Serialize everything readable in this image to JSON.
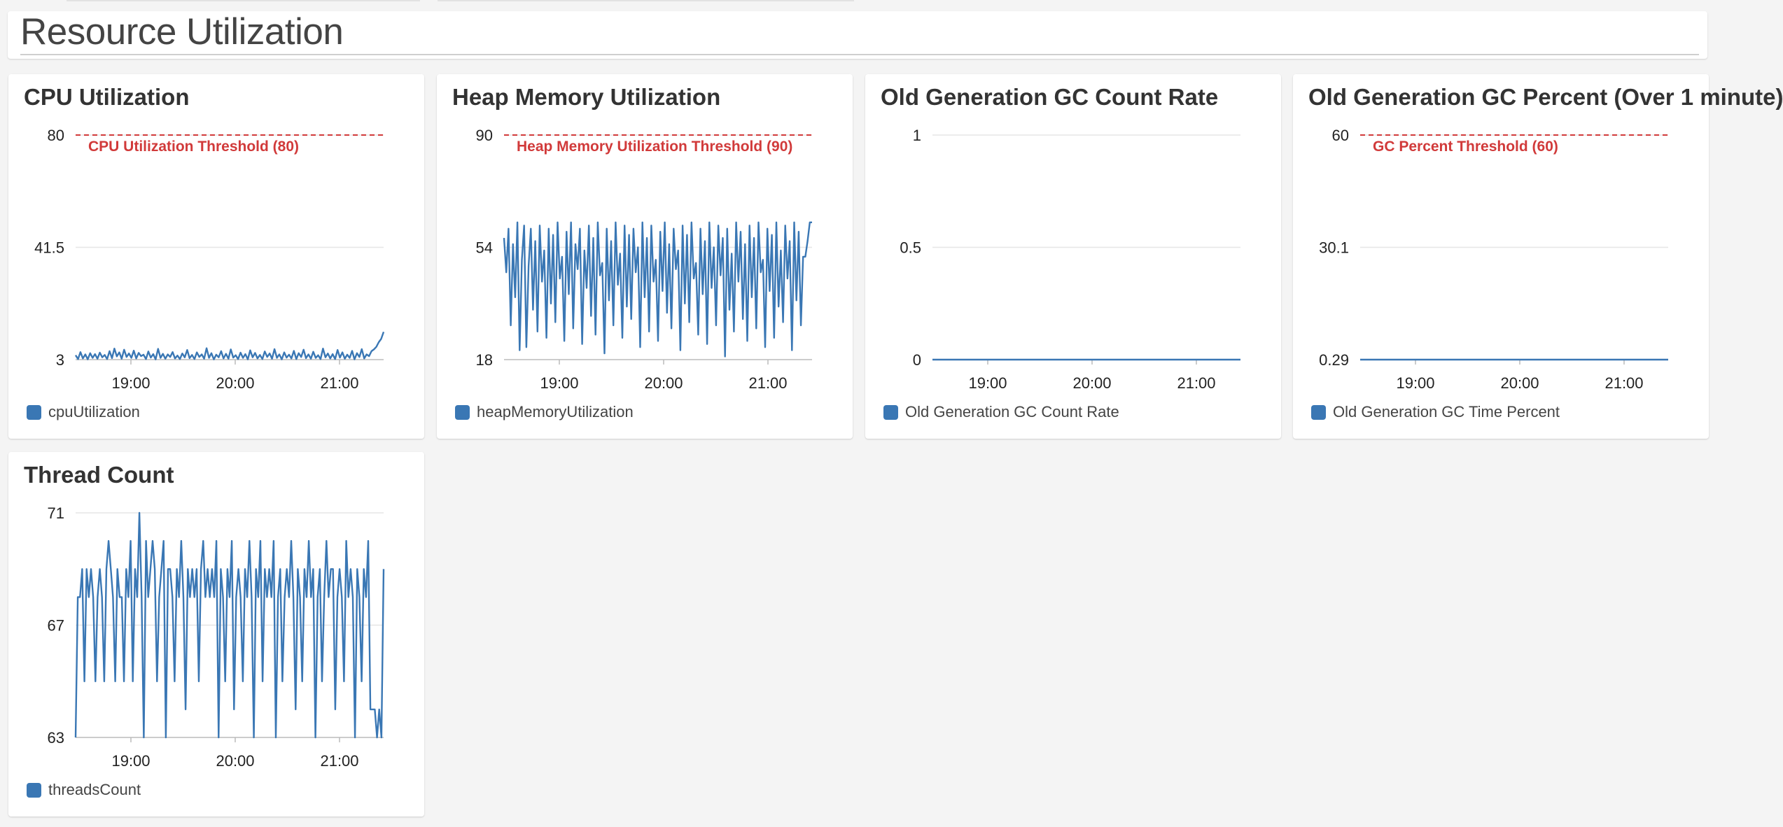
{
  "dashboard": {
    "title": "Resource Utilization"
  },
  "series_color": "#3a77b4",
  "threshold_color": "#d13a3a",
  "x_ticks": [
    "19:00",
    "20:00",
    "21:00"
  ],
  "panels": [
    {
      "title": "CPU Utilization",
      "y_ticks": [
        "80",
        "41.5",
        "3"
      ],
      "threshold_label": "CPU Utilization Threshold (80)",
      "legend": "cpuUtilization",
      "chart_data": {
        "type": "line",
        "ylim": [
          3,
          80
        ],
        "threshold": 80,
        "series": [
          {
            "name": "cpuUtilization",
            "values": [
              4.5,
              3.2,
              5.6,
              3.4,
              4.8,
              3.1,
              5.2,
              3.6,
              4.9,
              3.3,
              5.4,
              3.8,
              4.6,
              3.2,
              5.9,
              3.5,
              6.8,
              4.1,
              5.5,
              3.3,
              6.4,
              3.9,
              5.1,
              3.6,
              6.1,
              3.4,
              5.3,
              4.2,
              4.7,
              3.2,
              5.8,
              3.7,
              4.9,
              3.1,
              6.7,
              3.6,
              5.0,
              3.3,
              4.8,
              3.9,
              5.6,
              3.4,
              4.4,
              3.2,
              5.1,
              3.8,
              6.3,
              3.5,
              4.6,
              3.2,
              5.5,
              3.9,
              4.8,
              3.3,
              6.9,
              3.6,
              5.2,
              3.1,
              4.7,
              3.8,
              5.9,
              3.4,
              5.0,
              3.3,
              6.5,
              3.7,
              4.5,
              3.2,
              5.4,
              3.6,
              4.9,
              3.1,
              6.2,
              3.8,
              5.3,
              3.4,
              4.6,
              3.2,
              5.8,
              3.9,
              5.1,
              3.3,
              6.6,
              3.6,
              4.8,
              3.1,
              5.5,
              3.7,
              4.7,
              3.4,
              6.0,
              3.2,
              5.2,
              3.9,
              6.4,
              3.5,
              4.8,
              3.3,
              5.7,
              3.6,
              4.5,
              3.2,
              6.8,
              3.8,
              5.1,
              3.4,
              4.9,
              3.2,
              6.3,
              3.7,
              5.5,
              3.3,
              4.7,
              3.6,
              6.0,
              3.1,
              5.2,
              3.9,
              6.6,
              3.4,
              4.8,
              4.2,
              5.9,
              6.5,
              7.4,
              9.0,
              10.1,
              12.5
            ]
          }
        ]
      }
    },
    {
      "title": "Heap Memory Utilization",
      "y_ticks": [
        "90",
        "54",
        "18"
      ],
      "threshold_label": "Heap Memory Utilization Threshold (90)",
      "legend": "heapMemoryUtilization",
      "chart_data": {
        "type": "line",
        "ylim": [
          18,
          90
        ],
        "threshold": 90,
        "series": [
          {
            "name": "heapMemoryUtilization",
            "values": [
              57,
              46,
              60,
              29,
              55,
              38,
              62,
              21,
              50,
              61,
              22,
              48,
              60,
              34,
              56,
              27,
              61,
              43,
              53,
              25,
              60,
              36,
              58,
              30,
              62,
              44,
              51,
              24,
              59,
              39,
              62,
              28,
              55,
              47,
              60,
              23,
              53,
              41,
              61,
              32,
              57,
              26,
              62,
              45,
              49,
              20,
              60,
              37,
              56,
              29,
              62,
              42,
              52,
              25,
              61,
              35,
              58,
              31,
              60,
              46,
              54,
              22,
              62,
              38,
              57,
              27,
              61,
              43,
              50,
              24,
              59,
              40,
              62,
              33,
              55,
              28,
              60,
              47,
              53,
              21,
              61,
              36,
              58,
              30,
              62,
              44,
              49,
              26,
              60,
              39,
              56,
              23,
              62,
              41,
              54,
              29,
              61,
              45,
              57,
              19,
              60,
              34,
              52,
              27,
              62,
              43,
              59,
              31,
              55,
              24,
              61,
              38,
              57,
              28,
              62,
              46,
              50,
              22,
              60,
              40,
              58,
              25,
              62,
              35,
              53,
              30,
              61,
              44,
              56,
              21,
              62,
              37,
              59,
              29,
              51,
              51,
              56,
              62,
              62
            ]
          }
        ]
      }
    },
    {
      "title": "Old Generation GC Count Rate",
      "y_ticks": [
        "1",
        "0.5",
        "0"
      ],
      "threshold_label": "",
      "legend": "Old Generation GC Count Rate",
      "chart_data": {
        "type": "line",
        "ylim": [
          0,
          1
        ],
        "series": [
          {
            "name": "Old Generation GC Count Rate",
            "values": [
              0,
              0
            ]
          }
        ]
      }
    },
    {
      "title": "Old Generation GC Percent (Over 1 minute)",
      "y_ticks": [
        "60",
        "30.1",
        "0.29"
      ],
      "threshold_label": "GC Percent Threshold (60)",
      "legend": "Old Generation GC Time Percent",
      "chart_data": {
        "type": "line",
        "ylim": [
          0.29,
          60
        ],
        "threshold": 60,
        "series": [
          {
            "name": "Old Generation GC Time Percent",
            "values": [
              0.29,
              0.29
            ]
          }
        ]
      }
    },
    {
      "title": "Thread Count",
      "y_ticks": [
        "71",
        "67",
        "63"
      ],
      "threshold_label": "",
      "legend": "threadsCount",
      "chart_data": {
        "type": "line",
        "ylim": [
          63,
          71
        ],
        "series": [
          {
            "name": "threadsCount",
            "values": [
              63,
              68,
              68,
              69,
              65,
              69,
              68,
              69,
              68,
              65,
              68,
              69,
              68,
              65,
              69,
              70,
              69,
              68,
              65,
              69,
              68,
              68,
              65,
              69,
              68,
              70,
              65,
              69,
              68,
              71,
              68,
              63,
              70,
              68,
              69,
              70,
              69,
              65,
              68,
              69,
              70,
              63,
              69,
              69,
              68,
              65,
              69,
              68,
              70,
              68,
              64,
              69,
              68,
              69,
              68,
              69,
              65,
              69,
              70,
              68,
              69,
              68,
              69,
              68,
              70,
              63,
              69,
              68,
              65,
              69,
              68,
              70,
              64,
              68,
              69,
              68,
              65,
              69,
              68,
              70,
              68,
              63,
              69,
              68,
              70,
              65,
              69,
              68,
              69,
              68,
              70,
              63,
              68,
              69,
              65,
              68,
              69,
              68,
              70,
              68,
              64,
              69,
              68,
              65,
              69,
              68,
              70,
              68,
              69,
              63,
              68,
              69,
              65,
              68,
              70,
              68,
              69,
              69,
              64,
              68,
              69,
              68,
              65,
              70,
              68,
              69,
              68,
              63,
              69,
              68,
              65,
              69,
              68,
              70,
              64,
              64,
              64,
              63,
              64,
              63,
              69
            ]
          }
        ]
      }
    }
  ]
}
